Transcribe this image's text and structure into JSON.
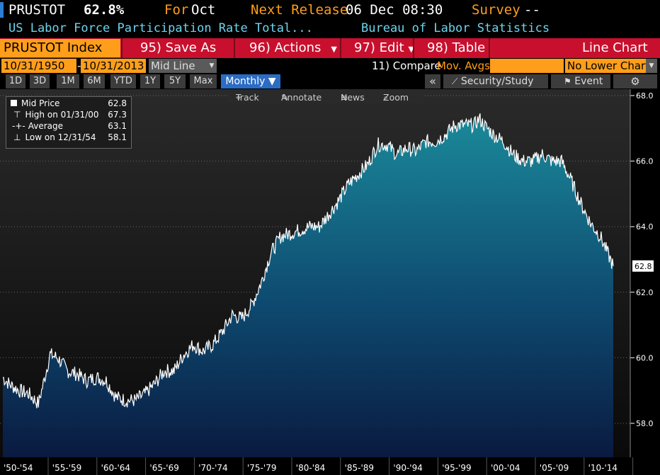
{
  "header": {
    "ticker": "PRUSTOT",
    "value": "62.8%",
    "for_label": "For",
    "for_period": "Oct",
    "next_release_label": "Next Release",
    "next_release_date": "06 Dec 08:30",
    "survey_label": "Survey",
    "survey_value": "--",
    "description": "US Labor Force Participation Rate Total...",
    "source": "Bureau of Labor Statistics"
  },
  "toolbar": {
    "ticker_field": "PRUSTOT Index",
    "save_as": "95) Save As",
    "actions": "96) Actions",
    "edit": "97) Edit",
    "table": "98) Table",
    "chart_type": "Line Chart"
  },
  "controls": {
    "start_date": "10/31/1950",
    "dash": "-",
    "end_date": "10/31/2013",
    "line_type": "Mid Line",
    "compare": "11) Compare",
    "mov_avgs": "Mov. Avgs",
    "lower_chart": "No Lower Chart"
  },
  "periods": [
    "1D",
    "3D",
    "1M",
    "6M",
    "YTD",
    "1Y",
    "5Y",
    "Max"
  ],
  "frequency": "Monthly ▼",
  "right_buttons": {
    "collapse": "«",
    "security_study": "Security/Study",
    "event": "Event",
    "settings_icon": "gear-icon"
  },
  "chart_tools": [
    "Track",
    "Annotate",
    "News",
    "Zoom"
  ],
  "legend": [
    {
      "label": "Mid Price",
      "value": "62.8"
    },
    {
      "label": "High on 01/31/00",
      "value": "67.3"
    },
    {
      "label": "Average",
      "value": "63.1"
    },
    {
      "label": "Low on 12/31/54",
      "value": "58.1"
    }
  ],
  "colors": {
    "accent_orange": "#ff9e1b",
    "toolbar_red": "#c8102e",
    "area_top": "#1b8a9a",
    "area_bottom": "#0a1a40"
  },
  "chart_data": {
    "type": "area",
    "frequency": "monthly",
    "ylim": [
      57.5,
      68.0
    ],
    "y_ticks": [
      "68.0",
      "66.0",
      "64.0",
      "62.0",
      "60.0",
      "58.0"
    ],
    "x_labels": [
      "'50-'54",
      "'55-'59",
      "'60-'64",
      "'65-'69",
      "'70-'74",
      "'75-'79",
      "'80-'84",
      "'85-'89",
      "'90-'94",
      "'95-'99",
      "'00-'04",
      "'05-'09",
      "'10-'14"
    ],
    "last_value_label": "62.8",
    "x": [
      1950.83,
      1951.5,
      1952.5,
      1953.5,
      1954.5,
      1955.0,
      1955.7,
      1956.5,
      1957.5,
      1958.5,
      1959.5,
      1960.5,
      1961.5,
      1962.5,
      1963.5,
      1964.5,
      1965.5,
      1966.5,
      1967.5,
      1968.5,
      1969.5,
      1970.5,
      1971.5,
      1972.5,
      1973.5,
      1974.5,
      1975.5,
      1976.5,
      1977.5,
      1978.5,
      1979.5,
      1980.5,
      1981.5,
      1982.5,
      1983.5,
      1984.5,
      1985.5,
      1986.5,
      1987.5,
      1988.5,
      1989.5,
      1990.5,
      1991.5,
      1992.5,
      1993.5,
      1994.5,
      1995.5,
      1996.5,
      1997.5,
      1998.5,
      1999.5,
      2000.0,
      2000.5,
      2001.5,
      2002.5,
      2003.5,
      2004.5,
      2005.5,
      2006.5,
      2007.5,
      2008.5,
      2009.5,
      2010.5,
      2011.5,
      2012.5,
      2013.83
    ],
    "values": [
      59.4,
      59.2,
      59.0,
      58.9,
      58.6,
      59.2,
      60.1,
      60.0,
      59.6,
      59.5,
      59.3,
      59.4,
      59.3,
      58.8,
      58.7,
      58.7,
      58.9,
      59.2,
      59.6,
      59.6,
      60.1,
      60.4,
      60.2,
      60.4,
      60.8,
      61.3,
      61.2,
      61.6,
      62.3,
      63.2,
      63.7,
      63.8,
      63.9,
      64.0,
      64.0,
      64.4,
      64.8,
      65.3,
      65.6,
      65.9,
      66.5,
      66.5,
      66.2,
      66.4,
      66.3,
      66.6,
      66.6,
      66.8,
      67.1,
      67.1,
      67.1,
      67.3,
      67.1,
      66.8,
      66.6,
      66.2,
      66.0,
      66.0,
      66.2,
      66.0,
      66.0,
      65.4,
      64.7,
      64.1,
      63.7,
      62.8
    ]
  }
}
